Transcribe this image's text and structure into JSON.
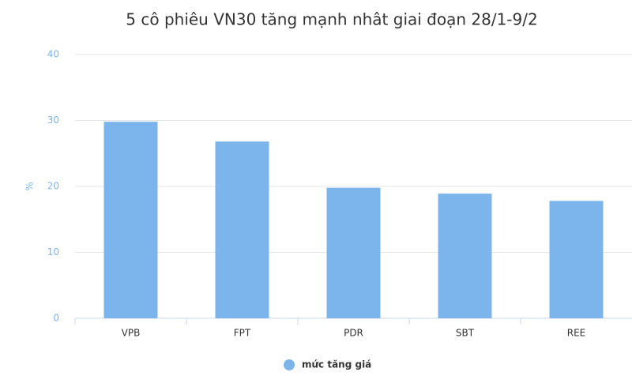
{
  "chart_data": {
    "type": "bar",
    "title": "5 cô phiêu VN30 tăng mạnh nhât giai đoạn 28/1-9/2",
    "y_label": "%",
    "categories": [
      "VPB",
      "FPT",
      "PDR",
      "SBT",
      "REE"
    ],
    "series": [
      {
        "name": "mức tăng giá",
        "color": "#7cb5ec",
        "values": [
          29.8,
          26.8,
          19.8,
          18.9,
          17.8
        ]
      }
    ],
    "ylim": [
      0,
      40
    ],
    "yticks": [
      0,
      10,
      20,
      30,
      40
    ],
    "grid": true
  }
}
